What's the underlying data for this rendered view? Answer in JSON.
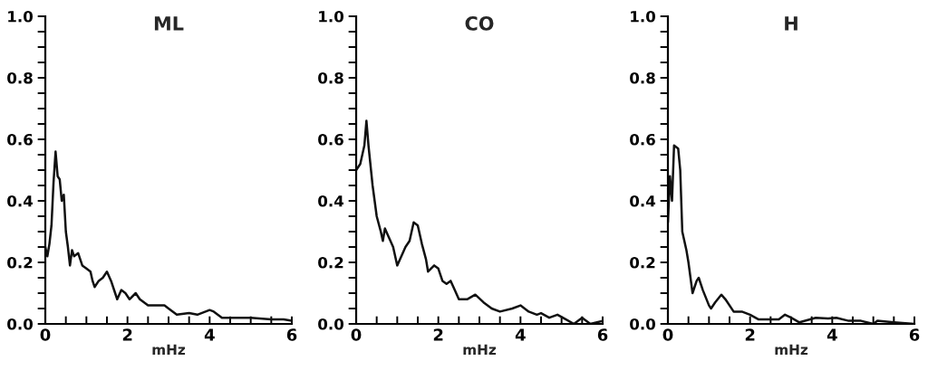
{
  "chart_data": [
    {
      "type": "line",
      "title": "ML",
      "xlabel": "mHz",
      "xlim": [
        0,
        6
      ],
      "ylim": [
        0,
        1.0
      ],
      "xticks": [
        {
          "value": 0,
          "label": "0"
        },
        {
          "value": 0.5,
          "label": null
        },
        {
          "value": 1,
          "label": null
        },
        {
          "value": 1.5,
          "label": null
        },
        {
          "value": 2,
          "label": "2"
        },
        {
          "value": 2.5,
          "label": null
        },
        {
          "value": 3,
          "label": null
        },
        {
          "value": 3.5,
          "label": null
        },
        {
          "value": 4,
          "label": "4"
        },
        {
          "value": 4.5,
          "label": null
        },
        {
          "value": 5,
          "label": null
        },
        {
          "value": 5.5,
          "label": null
        },
        {
          "value": 6,
          "label": "6"
        }
      ],
      "yticks": [
        {
          "value": 0,
          "label": "0.0"
        },
        {
          "value": 0.05,
          "label": null
        },
        {
          "value": 0.1,
          "label": null
        },
        {
          "value": 0.15,
          "label": null
        },
        {
          "value": 0.2,
          "label": "0.2"
        },
        {
          "value": 0.25,
          "label": null
        },
        {
          "value": 0.3,
          "label": null
        },
        {
          "value": 0.35,
          "label": null
        },
        {
          "value": 0.4,
          "label": "0.4"
        },
        {
          "value": 0.45,
          "label": null
        },
        {
          "value": 0.5,
          "label": null
        },
        {
          "value": 0.55,
          "label": null
        },
        {
          "value": 0.6,
          "label": "0.6"
        },
        {
          "value": 0.65,
          "label": null
        },
        {
          "value": 0.7,
          "label": null
        },
        {
          "value": 0.75,
          "label": null
        },
        {
          "value": 0.8,
          "label": "0.8"
        },
        {
          "value": 0.85,
          "label": null
        },
        {
          "value": 0.9,
          "label": null
        },
        {
          "value": 0.95,
          "label": null
        },
        {
          "value": 1.0,
          "label": "1.0"
        }
      ],
      "grid": false,
      "legend": false,
      "series": [
        {
          "color": "#111111",
          "x": [
            0,
            0.05,
            0.1,
            0.15,
            0.2,
            0.25,
            0.3,
            0.35,
            0.4,
            0.45,
            0.5,
            0.55,
            0.6,
            0.65,
            0.7,
            0.8,
            0.9,
            1.0,
            1.1,
            1.15,
            1.2,
            1.3,
            1.4,
            1.5,
            1.6,
            1.7,
            1.75,
            1.85,
            1.95,
            2.05,
            2.2,
            2.3,
            2.5,
            2.7,
            2.9,
            3.0,
            3.2,
            3.5,
            3.7,
            4.0,
            4.1,
            4.3,
            4.6,
            5.0,
            5.5,
            5.8,
            6.0
          ],
          "values": [
            0.25,
            0.22,
            0.26,
            0.32,
            0.46,
            0.56,
            0.48,
            0.47,
            0.4,
            0.42,
            0.3,
            0.25,
            0.19,
            0.24,
            0.22,
            0.23,
            0.19,
            0.18,
            0.17,
            0.14,
            0.12,
            0.14,
            0.15,
            0.17,
            0.14,
            0.1,
            0.08,
            0.11,
            0.1,
            0.08,
            0.1,
            0.08,
            0.06,
            0.06,
            0.06,
            0.05,
            0.03,
            0.035,
            0.03,
            0.045,
            0.04,
            0.02,
            0.02,
            0.02,
            0.015,
            0.015,
            0.01
          ]
        }
      ]
    },
    {
      "type": "line",
      "title": "CO",
      "xlabel": "mHz",
      "xlim": [
        0,
        6
      ],
      "ylim": [
        0,
        1.0
      ],
      "xticks": [
        {
          "value": 0,
          "label": "0"
        },
        {
          "value": 0.5,
          "label": null
        },
        {
          "value": 1,
          "label": null
        },
        {
          "value": 1.5,
          "label": null
        },
        {
          "value": 2,
          "label": "2"
        },
        {
          "value": 2.5,
          "label": null
        },
        {
          "value": 3,
          "label": null
        },
        {
          "value": 3.5,
          "label": null
        },
        {
          "value": 4,
          "label": "4"
        },
        {
          "value": 4.5,
          "label": null
        },
        {
          "value": 5,
          "label": null
        },
        {
          "value": 5.5,
          "label": null
        },
        {
          "value": 6,
          "label": "6"
        }
      ],
      "yticks": [
        {
          "value": 0,
          "label": "0.0"
        },
        {
          "value": 0.05,
          "label": null
        },
        {
          "value": 0.1,
          "label": null
        },
        {
          "value": 0.15,
          "label": null
        },
        {
          "value": 0.2,
          "label": "0.2"
        },
        {
          "value": 0.25,
          "label": null
        },
        {
          "value": 0.3,
          "label": null
        },
        {
          "value": 0.35,
          "label": null
        },
        {
          "value": 0.4,
          "label": "0.4"
        },
        {
          "value": 0.45,
          "label": null
        },
        {
          "value": 0.5,
          "label": null
        },
        {
          "value": 0.55,
          "label": null
        },
        {
          "value": 0.6,
          "label": "0.6"
        },
        {
          "value": 0.65,
          "label": null
        },
        {
          "value": 0.7,
          "label": null
        },
        {
          "value": 0.75,
          "label": null
        },
        {
          "value": 0.8,
          "label": "0.8"
        },
        {
          "value": 0.85,
          "label": null
        },
        {
          "value": 0.9,
          "label": null
        },
        {
          "value": 0.95,
          "label": null
        },
        {
          "value": 1.0,
          "label": "1.0"
        }
      ],
      "grid": false,
      "legend": false,
      "series": [
        {
          "color": "#111111",
          "x": [
            0,
            0.1,
            0.2,
            0.25,
            0.3,
            0.4,
            0.5,
            0.6,
            0.65,
            0.7,
            0.8,
            0.9,
            1.0,
            1.1,
            1.2,
            1.3,
            1.4,
            1.5,
            1.6,
            1.7,
            1.75,
            1.9,
            2.0,
            2.1,
            2.2,
            2.3,
            2.4,
            2.5,
            2.7,
            2.9,
            3.1,
            3.3,
            3.5,
            3.8,
            4.0,
            4.2,
            4.4,
            4.5,
            4.7,
            4.9,
            5.1,
            5.3,
            5.5,
            5.7,
            6.0
          ],
          "values": [
            0.5,
            0.52,
            0.58,
            0.66,
            0.58,
            0.45,
            0.35,
            0.3,
            0.27,
            0.31,
            0.28,
            0.25,
            0.19,
            0.22,
            0.25,
            0.27,
            0.33,
            0.32,
            0.26,
            0.21,
            0.17,
            0.19,
            0.18,
            0.14,
            0.13,
            0.14,
            0.11,
            0.08,
            0.08,
            0.095,
            0.07,
            0.05,
            0.04,
            0.05,
            0.06,
            0.04,
            0.03,
            0.035,
            0.02,
            0.03,
            0.015,
            0.0,
            0.02,
            0.0,
            0.01
          ]
        }
      ]
    },
    {
      "type": "line",
      "title": "H",
      "xlabel": "mHz",
      "xlim": [
        0,
        6
      ],
      "ylim": [
        0,
        1.0
      ],
      "xticks": [
        {
          "value": 0,
          "label": "0"
        },
        {
          "value": 0.5,
          "label": null
        },
        {
          "value": 1,
          "label": null
        },
        {
          "value": 1.5,
          "label": null
        },
        {
          "value": 2,
          "label": "2"
        },
        {
          "value": 2.5,
          "label": null
        },
        {
          "value": 3,
          "label": null
        },
        {
          "value": 3.5,
          "label": null
        },
        {
          "value": 4,
          "label": "4"
        },
        {
          "value": 4.5,
          "label": null
        },
        {
          "value": 5,
          "label": null
        },
        {
          "value": 5.5,
          "label": null
        },
        {
          "value": 6,
          "label": "6"
        }
      ],
      "yticks": [
        {
          "value": 0,
          "label": "0.0"
        },
        {
          "value": 0.05,
          "label": null
        },
        {
          "value": 0.1,
          "label": null
        },
        {
          "value": 0.15,
          "label": null
        },
        {
          "value": 0.2,
          "label": "0.2"
        },
        {
          "value": 0.25,
          "label": null
        },
        {
          "value": 0.3,
          "label": null
        },
        {
          "value": 0.35,
          "label": null
        },
        {
          "value": 0.4,
          "label": "0.4"
        },
        {
          "value": 0.45,
          "label": null
        },
        {
          "value": 0.5,
          "label": null
        },
        {
          "value": 0.55,
          "label": null
        },
        {
          "value": 0.6,
          "label": "0.6"
        },
        {
          "value": 0.65,
          "label": null
        },
        {
          "value": 0.7,
          "label": null
        },
        {
          "value": 0.75,
          "label": null
        },
        {
          "value": 0.8,
          "label": "0.8"
        },
        {
          "value": 0.85,
          "label": null
        },
        {
          "value": 0.9,
          "label": null
        },
        {
          "value": 0.95,
          "label": null
        },
        {
          "value": 1.0,
          "label": "1.0"
        }
      ],
      "grid": false,
      "legend": false,
      "series": [
        {
          "color": "#111111",
          "x": [
            0,
            0.05,
            0.1,
            0.15,
            0.25,
            0.3,
            0.35,
            0.45,
            0.5,
            0.6,
            0.7,
            0.75,
            0.85,
            1.0,
            1.05,
            1.15,
            1.3,
            1.4,
            1.6,
            1.8,
            2.0,
            2.2,
            2.5,
            2.7,
            2.85,
            3.0,
            3.2,
            3.6,
            3.9,
            4.1,
            4.4,
            4.7,
            5.0,
            5.1,
            5.5,
            6.0
          ],
          "values": [
            0.33,
            0.48,
            0.4,
            0.58,
            0.57,
            0.5,
            0.3,
            0.24,
            0.2,
            0.1,
            0.14,
            0.15,
            0.11,
            0.06,
            0.05,
            0.07,
            0.095,
            0.08,
            0.04,
            0.04,
            0.03,
            0.015,
            0.015,
            0.015,
            0.03,
            0.02,
            0.005,
            0.02,
            0.018,
            0.02,
            0.01,
            0.01,
            0.0,
            0.01,
            0.005,
            0.0
          ]
        }
      ]
    }
  ]
}
